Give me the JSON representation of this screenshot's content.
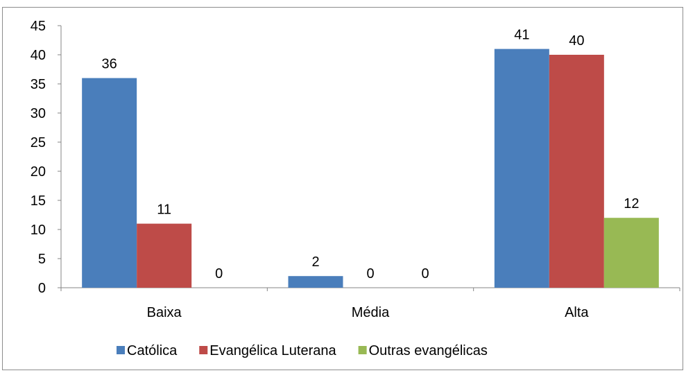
{
  "chart_data": {
    "type": "bar",
    "categories": [
      "Baixa",
      "Média",
      "Alta"
    ],
    "series": [
      {
        "name": "Católica",
        "color": "#4a7ebb",
        "values": [
          36,
          2,
          41
        ]
      },
      {
        "name": "Evangélica Luterana",
        "color": "#be4b48",
        "values": [
          11,
          0,
          40
        ]
      },
      {
        "name": "Outras evangélicas",
        "color": "#98b954",
        "values": [
          0,
          0,
          12
        ]
      }
    ],
    "ylim": [
      0,
      45
    ],
    "yticks": [
      0,
      5,
      10,
      15,
      20,
      25,
      30,
      35,
      40,
      45
    ],
    "grid": false,
    "legend_position": "bottom",
    "data_labels": true
  }
}
